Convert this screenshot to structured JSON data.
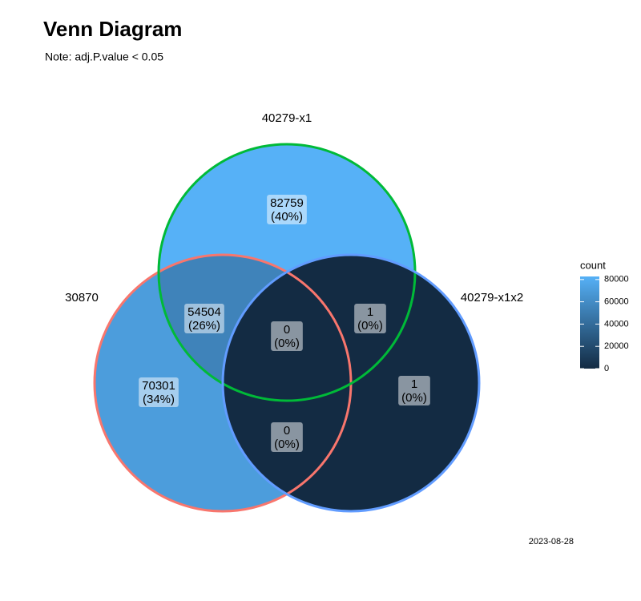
{
  "chart_data": {
    "type": "venn",
    "title": "Venn Diagram",
    "subtitle": "Note: adj.P.value < 0.05",
    "caption": "2023-08-28",
    "sets": [
      {
        "name": "30870",
        "color": "#F8766D"
      },
      {
        "name": "40279-x1",
        "color": "#00BA38"
      },
      {
        "name": "40279-x1x2",
        "color": "#619CFF"
      }
    ],
    "regions": [
      {
        "sets": [
          "40279-x1"
        ],
        "count": 82759,
        "percent_label": "(40%)"
      },
      {
        "sets": [
          "30870",
          "40279-x1"
        ],
        "count": 54504,
        "percent_label": "(26%)"
      },
      {
        "sets": [
          "30870",
          "40279-x1",
          "40279-x1x2"
        ],
        "count": 0,
        "percent_label": "(0%)"
      },
      {
        "sets": [
          "40279-x1",
          "40279-x1x2"
        ],
        "count": 1,
        "percent_label": "(0%)"
      },
      {
        "sets": [
          "30870"
        ],
        "count": 70301,
        "percent_label": "(34%)"
      },
      {
        "sets": [
          "40279-x1x2"
        ],
        "count": 1,
        "percent_label": "(0%)"
      },
      {
        "sets": [
          "30870",
          "40279-x1x2"
        ],
        "count": 0,
        "percent_label": "(0%)"
      }
    ],
    "legend": {
      "title": "count",
      "low_color": "#132B43",
      "high_color": "#56B1F7",
      "lim": [
        0,
        82759
      ],
      "ticks": [
        0,
        20000,
        40000,
        60000,
        80000
      ]
    }
  }
}
